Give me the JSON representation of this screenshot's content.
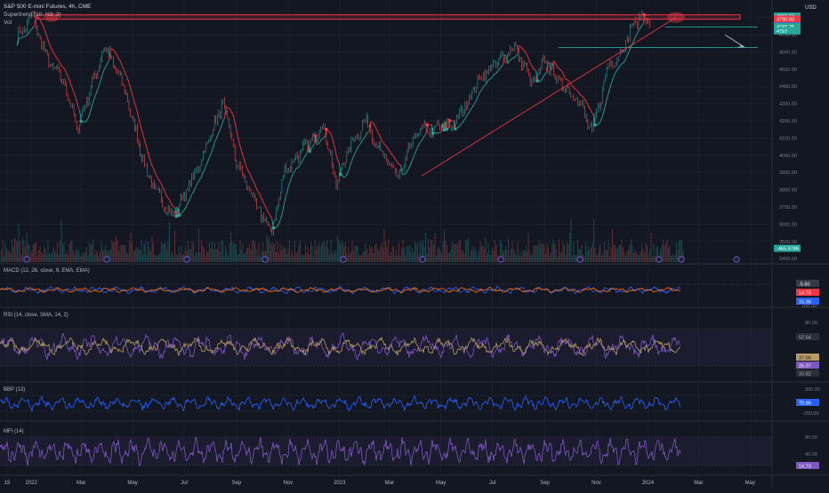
{
  "header": {
    "title": "S&P 500 E-mini Futures, 4h, CME",
    "indicator_1": "Supertrend (10, N2, 3)",
    "indicator_2": "Vol",
    "currency": "USD"
  },
  "colors": {
    "background": "#131722",
    "grid": "#1f2330",
    "up": "#26a69a",
    "down": "#ef5350",
    "supertrend_up": "#26a69a",
    "supertrend_down": "#f23645",
    "macd": "#2962ff",
    "signal": "#ff6d00",
    "rsi": "#7e57c2",
    "cci": "#2962ff",
    "mfi": "#7e57c2",
    "annotation": "#f23645"
  },
  "price_axis": {
    "ticks": [
      "4800.00",
      "4700.00",
      "4600.00",
      "4500.00",
      "4400.00",
      "4300.00",
      "4200.00",
      "4100.00",
      "4000.00",
      "3900.00",
      "3800.00",
      "3700.00",
      "3600.00",
      "3500.00",
      "3400.00"
    ],
    "badges": [
      {
        "label": "4807.84",
        "color": "#26a69a",
        "value": 4807.84
      },
      {
        "label": "4790.80",
        "color": "#f23645",
        "value": 4790.8
      },
      {
        "label": "4750.75",
        "color": "#2962ff",
        "value": 4750.75
      },
      {
        "label": "4747.75",
        "color": "#26a69a",
        "value": 4747.75
      },
      {
        "label": "4757",
        "color": "#26a69a",
        "value": 4722
      },
      {
        "label": "-465.978K",
        "color": "#26a69a",
        "value": 3460
      }
    ]
  },
  "time_axis": {
    "labels": [
      "15",
      "2022",
      "Mar",
      "May",
      "Jul",
      "Sep",
      "Nov",
      "2023",
      "Mar",
      "May",
      "Jul",
      "Sep",
      "Nov",
      "2024",
      "Mar",
      "May"
    ]
  },
  "panes": {
    "macd": {
      "title": "MACD (12, 26, close, 9, EMA, EMA)",
      "axis_labels": [
        "100.00"
      ],
      "badges": [
        "-5.60",
        "14.78",
        "15.38"
      ]
    },
    "rsi": {
      "title": "RSI (14, close, SMA, 14, 2)",
      "axis_labels": [
        "80.00",
        "52.64"
      ],
      "badges": [
        "37.56",
        "26.07",
        "33.82"
      ]
    },
    "cci": {
      "title": "BBP (13)",
      "axis_labels": [
        "200.00",
        "-200.00"
      ],
      "badges": [
        "70.96"
      ]
    },
    "mfi": {
      "title": "MFI (14)",
      "axis_labels": [
        "80.00",
        "40.00"
      ],
      "badges": [
        "14.73"
      ]
    }
  },
  "chart_data": {
    "type": "line",
    "symbol": "ES1!",
    "timeframe": "4h",
    "series": [
      {
        "x": [
          "2021-12-15",
          "2022-01-03",
          "2022-01-20",
          "2022-02-10",
          "2022-02-24",
          "2022-03-29",
          "2022-04-20",
          "2022-05-20",
          "2022-06-17",
          "2022-07-15",
          "2022-08-16",
          "2022-09-01",
          "2022-09-30",
          "2022-10-13",
          "2022-10-28",
          "2022-11-30",
          "2022-12-13",
          "2022-12-28",
          "2023-01-13",
          "2023-02-02",
          "2023-02-20",
          "2023-03-13",
          "2023-04-03",
          "2023-04-20",
          "2023-05-18",
          "2023-06-15",
          "2023-07-27",
          "2023-08-18",
          "2023-09-01",
          "2023-09-20",
          "2023-10-10",
          "2023-10-27",
          "2023-11-15",
          "2023-12-01",
          "2023-12-14",
          "2023-12-28",
          "2024-01-03"
        ],
        "values": [
          4690,
          4800,
          4550,
          4420,
          4150,
          4630,
          4400,
          3860,
          3640,
          3900,
          4310,
          3960,
          3650,
          3560,
          3910,
          4100,
          4180,
          3830,
          4060,
          4200,
          3990,
          3880,
          4150,
          4150,
          4190,
          4440,
          4630,
          4410,
          4550,
          4420,
          4330,
          4130,
          4520,
          4600,
          4760,
          4820,
          4740
        ]
      }
    ],
    "annotations": [
      {
        "type": "resistance_zone",
        "from": 4790,
        "to": 4815
      },
      {
        "type": "horizontal_line",
        "value": 4745
      },
      {
        "type": "horizontal_line",
        "value": 4625
      }
    ]
  }
}
